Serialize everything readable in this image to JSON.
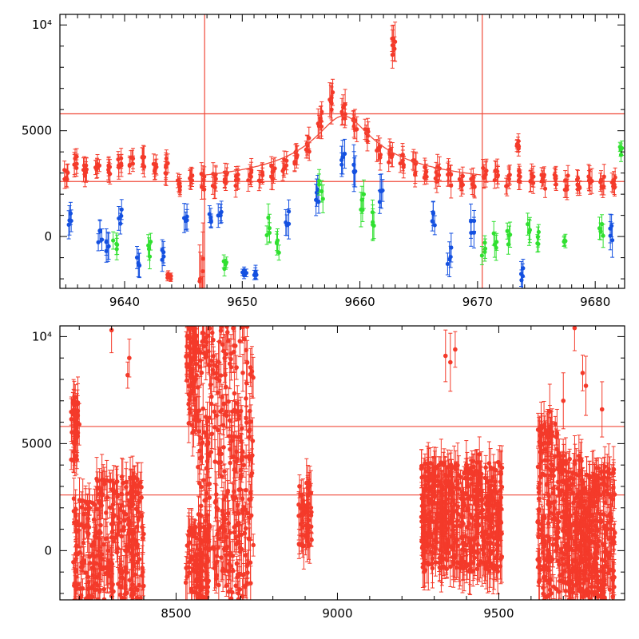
{
  "chart_data": [
    {
      "type": "scatter",
      "title": "",
      "xlabel": "",
      "ylabel": "",
      "xlim": [
        9634.5,
        9682.5
      ],
      "ylim": [
        -2450,
        10500
      ],
      "x_ticks": [
        9640,
        9650,
        9660,
        9670,
        9680
      ],
      "x_tick_labels": [
        "9640",
        "9650",
        "9660",
        "9670",
        "9680"
      ],
      "y_ticks": [
        0,
        5000,
        10000
      ],
      "y_tick_labels": [
        "0",
        "5000",
        "10⁴"
      ],
      "hlines": [
        5800,
        2600
      ],
      "vlines": [
        9646.8,
        9670.4
      ],
      "line_color": "#f04a3a",
      "model_curve": {
        "baseline": 2550,
        "peak": 5700,
        "t0": 9658.6,
        "x": [
          9646.8,
          9650,
          9654,
          9656,
          9658.6,
          9661,
          9663,
          9666,
          9670.4
        ],
        "y": [
          2600,
          2750,
          3400,
          4450,
          5700,
          4400,
          3300,
          2750,
          2600
        ]
      },
      "series": [
        {
          "name": "",
          "color": "#f43a2a",
          "x": [
            9635,
            9635.8,
            9636.6,
            9637.7,
            9638.6,
            9639.6,
            9640.6,
            9641.6,
            9642.6,
            9643.6,
            9644.6,
            9645.6,
            9646.6,
            9647.6,
            9648.6,
            9649.6,
            9650.6,
            9651.6,
            9652.6,
            9653.6,
            9654.6,
            9655.6,
            9656.6,
            9657.6,
            9658.6,
            9659.6,
            9660.6,
            9661.6,
            9662.6,
            9663.6,
            9664.6,
            9665.6,
            9666.6,
            9667.6,
            9668.6,
            9669.6,
            9670.6,
            9671.6,
            9672.6,
            9673.6,
            9674.6,
            9675.6,
            9676.6,
            9677.6,
            9678.6,
            9679.6,
            9680.6,
            9681.6,
            9662.9,
            9643.8,
            9646.5,
            9673.4
          ],
          "y": [
            2900,
            3500,
            3200,
            3400,
            3200,
            3300,
            3500,
            3600,
            3400,
            3300,
            2500,
            2800,
            2600,
            2700,
            2800,
            2600,
            2900,
            2900,
            3100,
            3400,
            3700,
            4400,
            5600,
            6400,
            5800,
            5300,
            4700,
            4200,
            3800,
            3600,
            3300,
            3000,
            2900,
            2800,
            2600,
            2700,
            2900,
            3000,
            2700,
            2900,
            2800,
            2600,
            2700,
            2600,
            2500,
            2700,
            2600,
            2500,
            9000,
            -1900,
            -2300,
            4300
          ],
          "yerr": [
            400,
            500,
            500,
            400,
            500,
            500,
            400,
            500,
            400,
            500,
            400,
            400,
            500,
            500,
            400,
            500,
            500,
            400,
            500,
            400,
            500,
            500,
            600,
            700,
            600,
            500,
            500,
            600,
            500,
            500,
            500,
            400,
            500,
            500,
            400,
            500,
            500,
            500,
            400,
            400,
            500,
            500,
            400,
            500,
            400,
            500,
            500,
            400,
            800,
            150,
            1700,
            300
          ]
        },
        {
          "name": "",
          "color": "#1450e0",
          "x": [
            9635.3,
            9637.9,
            9638.6,
            9639.6,
            9641.2,
            9643.3,
            9645.2,
            9647.2,
            9648.1,
            9650.2,
            9651.1,
            9653.8,
            9656.4,
            9658.6,
            9659.5,
            9661.8,
            9666.3,
            9667.6,
            9669.6,
            9673.8,
            9681.4
          ],
          "y": [
            600,
            100,
            -400,
            1000,
            -1400,
            -1000,
            1000,
            800,
            1200,
            -1700,
            -1900,
            800,
            1800,
            3500,
            3200,
            1700,
            700,
            -800,
            600,
            -1700,
            300
          ],
          "yerr": [
            700,
            500,
            600,
            500,
            600,
            500,
            600,
            400,
            500,
            200,
            300,
            600,
            700,
            700,
            800,
            700,
            600,
            700,
            700,
            500,
            700
          ]
        },
        {
          "name": "",
          "color": "#30e030",
          "x": [
            9639.2,
            9642.1,
            9648.5,
            9652.2,
            9653.1,
            9656.7,
            9660.2,
            9661.2,
            9670.5,
            9671.5,
            9672.6,
            9674.4,
            9675.2,
            9677.5,
            9680.5,
            9682.2
          ],
          "y": [
            -200,
            -600,
            -1300,
            500,
            -500,
            2300,
            1800,
            700,
            -600,
            -200,
            -100,
            400,
            -100,
            -400,
            300,
            4100
          ],
          "yerr": [
            500,
            500,
            300,
            600,
            500,
            700,
            700,
            800,
            400,
            500,
            500,
            600,
            400,
            300,
            500,
            300
          ]
        }
      ]
    },
    {
      "type": "scatter",
      "title": "",
      "xlabel": "",
      "ylabel": "",
      "xlim": [
        8140,
        9890
      ],
      "ylim": [
        -2300,
        10500
      ],
      "x_ticks": [
        8500,
        9000,
        9500
      ],
      "x_tick_labels": [
        "8500",
        "9000",
        "9500"
      ],
      "y_ticks": [
        0,
        5000,
        10000
      ],
      "y_tick_labels": [
        "0",
        "5000",
        "10⁴"
      ],
      "hlines": [
        5800,
        2600
      ],
      "line_color": "#f04a3a",
      "series": [
        {
          "name": "",
          "color": "#f43a2a",
          "groups": [
            {
              "x_range": [
                8175,
                8200
              ],
              "y_range": [
                4200,
                7200
              ],
              "n": 40
            },
            {
              "x_range": [
                8180,
                8250
              ],
              "y_range": [
                -2300,
                2500
              ],
              "n": 90
            },
            {
              "x_range": [
                8250,
                8400
              ],
              "y_range": [
                -2300,
                3500
              ],
              "n": 220
            },
            {
              "x_range": [
                8530,
                8565
              ],
              "y_range": [
                5500,
                10500
              ],
              "n": 70
            },
            {
              "x_range": [
                8530,
                8600
              ],
              "y_range": [
                -2300,
                1200
              ],
              "n": 80
            },
            {
              "x_range": [
                8565,
                8740
              ],
              "y_range": [
                -2300,
                10500
              ],
              "n": 330
            },
            {
              "x_range": [
                8880,
                8920
              ],
              "y_range": [
                200,
                3200
              ],
              "n": 50
            },
            {
              "x_range": [
                9260,
                9510
              ],
              "y_range": [
                -1000,
                4200
              ],
              "n": 500
            },
            {
              "x_range": [
                9620,
                9690
              ],
              "y_range": [
                -2300,
                6000
              ],
              "n": 160
            },
            {
              "x_range": [
                9690,
                9760
              ],
              "y_range": [
                -2000,
                4500
              ],
              "n": 180
            },
            {
              "x_range": [
                9760,
                9860
              ],
              "y_range": [
                -2300,
                4000
              ],
              "n": 240
            }
          ],
          "points": [
            {
              "x": 8300,
              "y": 10300
            },
            {
              "x": 8350,
              "y": 8200
            },
            {
              "x": 8355,
              "y": 9000
            },
            {
              "x": 9335,
              "y": 9100
            },
            {
              "x": 9350,
              "y": 8800
            },
            {
              "x": 9365,
              "y": 9400
            },
            {
              "x": 9440,
              "y": 4500
            },
            {
              "x": 9760,
              "y": 8300
            },
            {
              "x": 9820,
              "y": 6600
            },
            {
              "x": 9735,
              "y": 10400
            },
            {
              "x": 9700,
              "y": 7000
            },
            {
              "x": 9658,
              "y": 6500
            },
            {
              "x": 9770,
              "y": 7700
            }
          ]
        }
      ]
    }
  ]
}
